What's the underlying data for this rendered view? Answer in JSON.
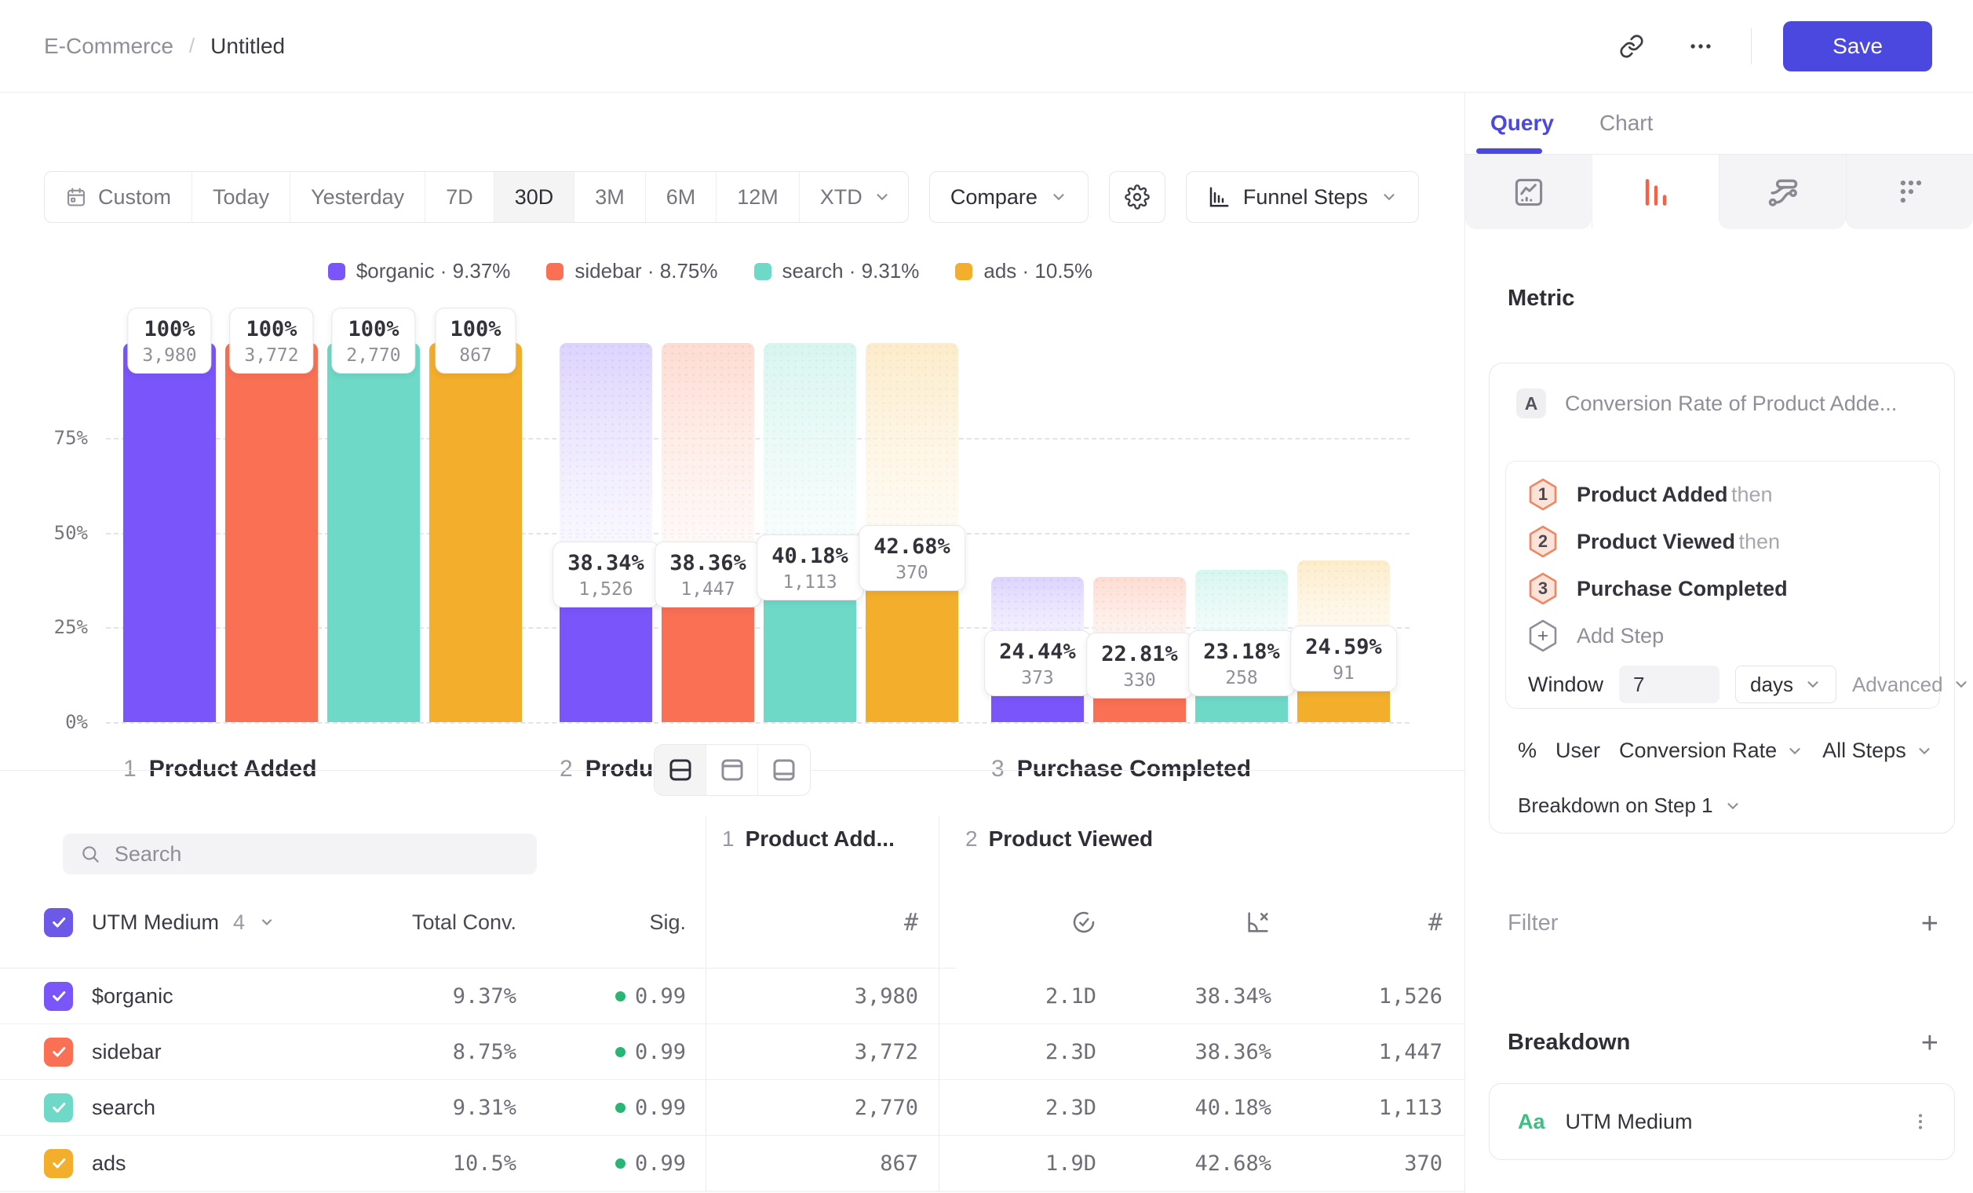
{
  "header": {
    "breadcrumb_root": "E-Commerce",
    "breadcrumb_sep": "/",
    "breadcrumb_current": "Untitled",
    "save_label": "Save"
  },
  "toolbar": {
    "ranges": [
      "Custom",
      "Today",
      "Yesterday",
      "7D",
      "30D",
      "3M",
      "6M",
      "12M",
      "XTD"
    ],
    "selected_range": "30D",
    "compare_label": "Compare",
    "chart_type_label": "Funnel Steps"
  },
  "colors": {
    "accent": "#4B48E0",
    "active_icon": "#F66145",
    "sig_dot": "#29B573",
    "aa_green": "#3DBE82",
    "series": [
      "#7A55FA",
      "#F97054",
      "#6FD9C7",
      "#F3AE2B"
    ],
    "tints": [
      "#DDD4FD",
      "#FDDCD2",
      "#D8F5EF",
      "#FCECCB"
    ],
    "dots": [
      "#C9BBFA",
      "#F8C4B4",
      "#BCEBE1",
      "#F6DCA4"
    ]
  },
  "chart_data": {
    "type": "bar",
    "subtype": "funnel-steps",
    "title": "",
    "categories": [
      "1 Product Added",
      "2 Product Viewed",
      "3 Purchase Completed"
    ],
    "y_ticks": [
      "0%",
      "25%",
      "50%",
      "75%"
    ],
    "ylim": [
      0,
      100
    ],
    "grid": true,
    "legend_position": "top-center",
    "steps": [
      {
        "num": "1",
        "label": "Product Added"
      },
      {
        "num": "2",
        "label": "Product Viewed"
      },
      {
        "num": "3",
        "label": "Purchase Completed"
      }
    ],
    "series": [
      {
        "name": "$organic",
        "overall": "9.37%",
        "counts": [
          3980,
          1526,
          373
        ],
        "count_labels": [
          "3,980",
          "1,526",
          "373"
        ],
        "pct_labels": [
          "100%",
          "38.34%",
          "24.44%"
        ],
        "solid_pct": [
          100,
          38.34,
          9.37
        ],
        "ghost_pct": [
          100,
          100,
          38.34
        ]
      },
      {
        "name": "sidebar",
        "overall": "8.75%",
        "counts": [
          3772,
          1447,
          330
        ],
        "count_labels": [
          "3,772",
          "1,447",
          "330"
        ],
        "pct_labels": [
          "100%",
          "38.36%",
          "22.81%"
        ],
        "solid_pct": [
          100,
          38.36,
          8.75
        ],
        "ghost_pct": [
          100,
          100,
          38.36
        ]
      },
      {
        "name": "search",
        "overall": "9.31%",
        "counts": [
          2770,
          1113,
          258
        ],
        "count_labels": [
          "2,770",
          "1,113",
          "258"
        ],
        "pct_labels": [
          "100%",
          "40.18%",
          "23.18%"
        ],
        "solid_pct": [
          100,
          40.18,
          9.31
        ],
        "ghost_pct": [
          100,
          100,
          40.18
        ]
      },
      {
        "name": "ads",
        "overall": "10.5%",
        "counts": [
          867,
          370,
          91
        ],
        "count_labels": [
          "867",
          "370",
          "91"
        ],
        "pct_labels": [
          "100%",
          "42.68%",
          "24.59%"
        ],
        "solid_pct": [
          100,
          42.68,
          10.5
        ],
        "ghost_pct": [
          100,
          100,
          42.68
        ]
      }
    ]
  },
  "table": {
    "search_placeholder": "Search",
    "group_headers": [
      {
        "num": "1",
        "label": "Product Add..."
      },
      {
        "num": "2",
        "label": "Product Viewed"
      }
    ],
    "left_header": {
      "name": "UTM Medium",
      "count": "4"
    },
    "col_total": "Total Conv.",
    "col_sig": "Sig.",
    "rows": [
      {
        "name": "$organic",
        "total": "9.37%",
        "sig": "0.99",
        "count1": "3,980",
        "time": "2.1D",
        "conv": "38.34%",
        "count2": "1,526"
      },
      {
        "name": "sidebar",
        "total": "8.75%",
        "sig": "0.99",
        "count1": "3,772",
        "time": "2.3D",
        "conv": "38.36%",
        "count2": "1,447"
      },
      {
        "name": "search",
        "total": "9.31%",
        "sig": "0.99",
        "count1": "2,770",
        "time": "2.3D",
        "conv": "40.18%",
        "count2": "1,113"
      },
      {
        "name": "ads",
        "total": "10.5%",
        "sig": "0.99",
        "count1": "867",
        "time": "1.9D",
        "conv": "42.68%",
        "count2": "370"
      }
    ]
  },
  "panel": {
    "tab_query": "Query",
    "tab_chart": "Chart",
    "metric_heading": "Metric",
    "metric": {
      "badge": "A",
      "title": "Conversion Rate of Product Adde...",
      "steps": [
        {
          "num": "1",
          "name": "Product Added",
          "suffix": "then"
        },
        {
          "num": "2",
          "name": "Product Viewed",
          "suffix": "then"
        },
        {
          "num": "3",
          "name": "Purchase Completed",
          "suffix": ""
        }
      ],
      "add_step": "Add Step",
      "window_label": "Window",
      "window_value": "7",
      "window_unit": "days",
      "advanced_label": "Advanced",
      "measure_prefix": "%",
      "measure_user": "User",
      "measure_metric": "Conversion Rate",
      "measure_steps": "All Steps",
      "breakdown_on": "Breakdown on Step 1"
    },
    "filter_heading": "Filter",
    "breakdown_heading": "Breakdown",
    "breakdown_item": {
      "type_badge": "Aa",
      "label": "UTM Medium"
    }
  }
}
